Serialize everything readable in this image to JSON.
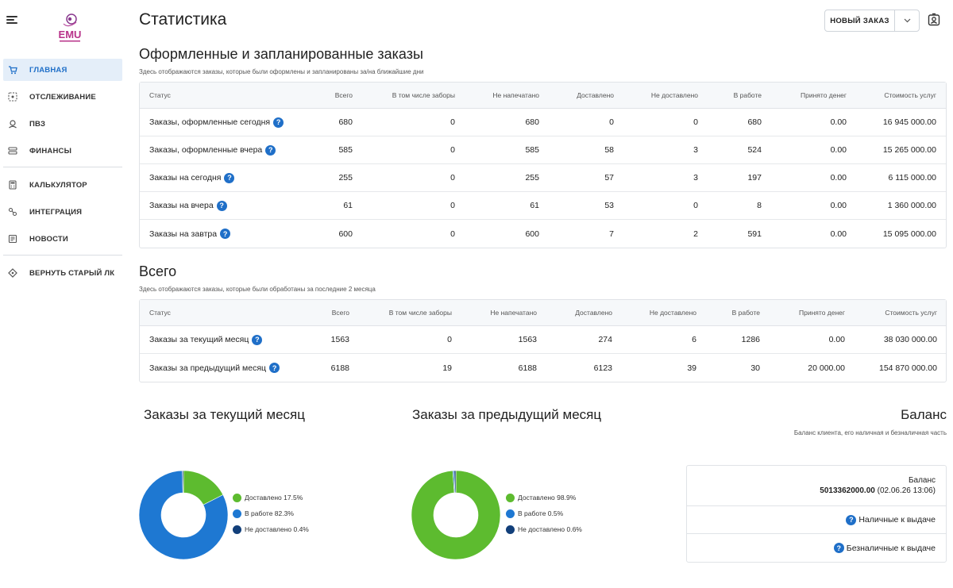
{
  "colors": {
    "accent": "#1f6fc8",
    "delivered": "#5dbb2f",
    "in_work": "#1e78d2",
    "not_delivered": "#123f7a"
  },
  "sidebar": {
    "logo_icon": "emu-logo",
    "items": [
      {
        "label": "ГЛАВНАЯ",
        "icon": "cart-icon",
        "active": true
      },
      {
        "label": "ОТСЛЕЖИВАНИЕ",
        "icon": "tracking-icon"
      },
      {
        "label": "ПВЗ",
        "icon": "pickup-point-icon"
      },
      {
        "label": "ФИНАНСЫ",
        "icon": "finance-icon"
      },
      {
        "label": "КАЛЬКУЛЯТОР",
        "icon": "calculator-icon"
      },
      {
        "label": "ИНТЕГРАЦИЯ",
        "icon": "integration-icon"
      },
      {
        "label": "НОВОСТИ",
        "icon": "news-icon"
      },
      {
        "label": "ВЕРНУТЬ СТАРЫЙ ЛК",
        "icon": "return-icon"
      }
    ]
  },
  "header": {
    "title": "Статистика",
    "new_order_label": "НОВЫЙ ЗАКАЗ"
  },
  "section1": {
    "title": "Оформленные и запланированные заказы",
    "subtitle": "Здесь отображаются заказы, которые были оформлены и запланированы за/на ближайшие дни",
    "columns": [
      "Статус",
      "Всего",
      "В том числе заборы",
      "Не напечатано",
      "Доставлено",
      "Не доставлено",
      "В работе",
      "Принято денег",
      "Стоимость услуг"
    ],
    "rows": [
      [
        "Заказы, оформленные сегодня",
        "680",
        "0",
        "680",
        "0",
        "0",
        "680",
        "0.00",
        "16 945 000.00"
      ],
      [
        "Заказы, оформленные вчера",
        "585",
        "0",
        "585",
        "58",
        "3",
        "524",
        "0.00",
        "15 265 000.00"
      ],
      [
        "Заказы на сегодня",
        "255",
        "0",
        "255",
        "57",
        "3",
        "197",
        "0.00",
        "6 115 000.00"
      ],
      [
        "Заказы на вчера",
        "61",
        "0",
        "61",
        "53",
        "0",
        "8",
        "0.00",
        "1 360 000.00"
      ],
      [
        "Заказы на завтра",
        "600",
        "0",
        "600",
        "7",
        "2",
        "591",
        "0.00",
        "15 095 000.00"
      ]
    ]
  },
  "section2": {
    "title": "Всего",
    "subtitle": "Здесь отображаются заказы, которые были обработаны за последние 2 месяца",
    "columns": [
      "Статус",
      "Всего",
      "В том числе заборы",
      "Не напечатано",
      "Доставлено",
      "Не доставлено",
      "В работе",
      "Принято денег",
      "Стоимость услуг"
    ],
    "rows": [
      [
        "Заказы за текущий месяц",
        "1563",
        "0",
        "1563",
        "274",
        "6",
        "1286",
        "0.00",
        "38 030 000.00"
      ],
      [
        "Заказы за предыдущий месяц",
        "6188",
        "19",
        "6188",
        "6123",
        "39",
        "30",
        "20 000.00",
        "154 870 000.00"
      ]
    ]
  },
  "chart_data": [
    {
      "type": "pie",
      "title": "Заказы за текущий месяц",
      "categories": [
        "Доставлено",
        "В работе",
        "Не доставлено"
      ],
      "values": [
        17.5,
        82.3,
        0.4
      ],
      "legend": [
        "Доставлено 17.5%",
        "В работе 82.3%",
        "Не доставлено 0.4%"
      ],
      "legend_position": "right"
    },
    {
      "type": "pie",
      "title": "Заказы за предыдущий месяц",
      "categories": [
        "Доставлено",
        "В работе",
        "Не доставлено"
      ],
      "values": [
        98.9,
        0.5,
        0.6
      ],
      "legend": [
        "Доставлено 98.9%",
        "В работе 0.5%",
        "Не доставлено 0.6%"
      ],
      "legend_position": "right"
    }
  ],
  "balance": {
    "title": "Баланс",
    "subtitle": "Баланс клиента, его наличная и безналичная часть",
    "label": "Баланс",
    "amount": "5013362000.00",
    "date": "(02.06.26 13:06)",
    "cash_label": "Наличные к выдаче",
    "cashless_label": "Безналичные к выдаче"
  }
}
